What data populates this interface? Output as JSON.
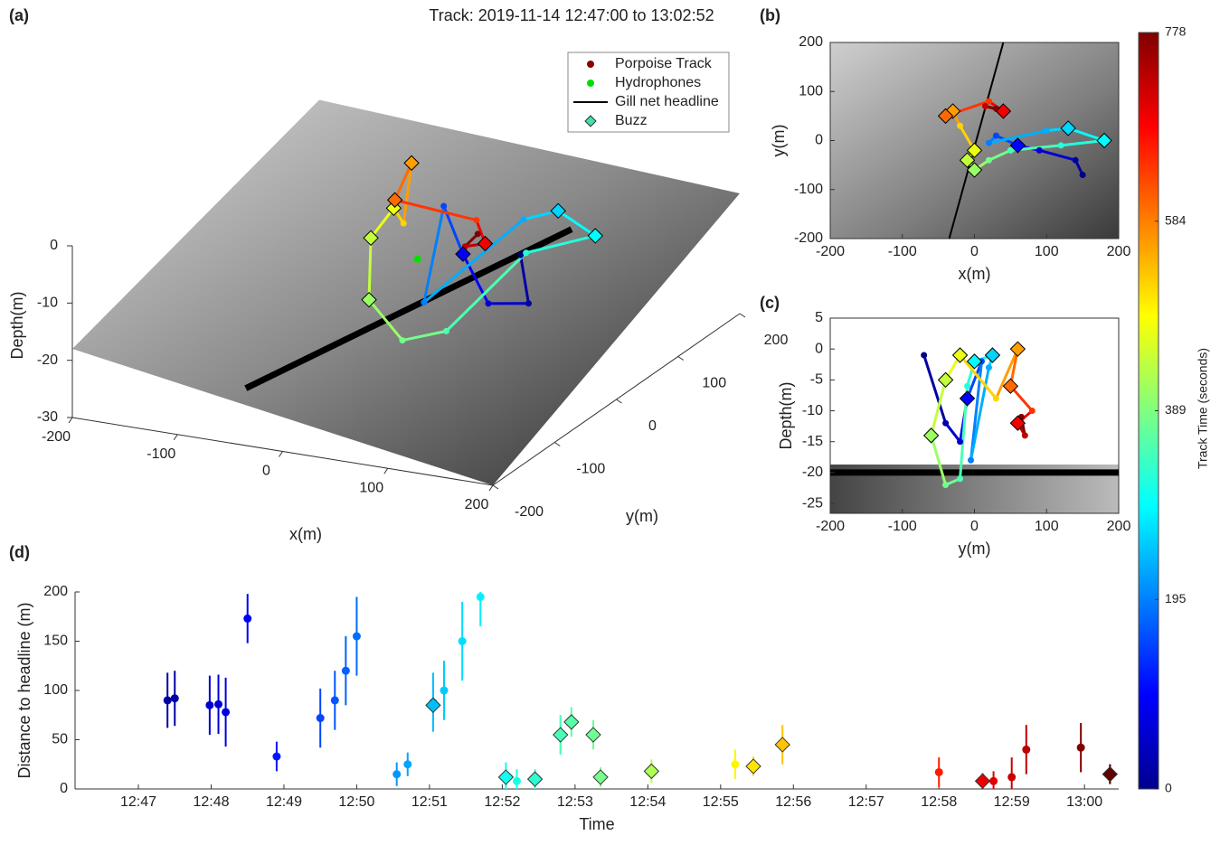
{
  "title": "Track: 2019-11-14 12:47:00 to 13:02:52",
  "chart_data": [
    {
      "type": "surface3d",
      "panel_label": "(a)",
      "x_label": "x(m)",
      "y_label": "y(m)",
      "z_label": "Depth(m)",
      "xlim": [
        -200,
        200
      ],
      "ylim": [
        -200,
        200
      ],
      "zlim": [
        -30,
        0
      ],
      "xticks": [
        -200,
        -100,
        0,
        100,
        200
      ],
      "yticks": [
        -200,
        -100,
        0,
        100,
        200
      ],
      "zticks": [
        -30,
        -20,
        -10,
        0
      ],
      "legend": [
        {
          "name": "Porpoise Track",
          "color": "#8b0000",
          "marker": "circle"
        },
        {
          "name": "Hydrophones",
          "color": "#00e000",
          "marker": "circle"
        },
        {
          "name": "Gill net headline",
          "color": "#000000",
          "marker": "line"
        },
        {
          "name": "Buzz",
          "color": "#40e0b0",
          "marker": "diamond"
        }
      ]
    },
    {
      "type": "map",
      "panel_label": "(b)",
      "x_label": "x(m)",
      "y_label": "y(m)",
      "xlim": [
        -200,
        200
      ],
      "ylim": [
        -200,
        200
      ],
      "xticks": [
        -200,
        -100,
        0,
        100,
        200
      ],
      "yticks": [
        -200,
        -100,
        0,
        100,
        200
      ]
    },
    {
      "type": "section",
      "panel_label": "(c)",
      "x_label": "y(m)",
      "y_label": "Depth(m)",
      "xlim": [
        -200,
        200
      ],
      "ylim": [
        -26.6,
        5
      ],
      "xticks": [
        -200,
        -100,
        0,
        100,
        200
      ],
      "yticks": [
        -25,
        -20,
        -15,
        -10,
        -5,
        0,
        5
      ]
    },
    {
      "type": "scatter",
      "panel_label": "(d)",
      "x_label": "Time",
      "y_label": "Distance to headline (m)",
      "xlim": [
        46.13,
        60.47
      ],
      "xticks": [
        {
          "value": 47,
          "label": "12:47"
        },
        {
          "value": 48,
          "label": "12:48"
        },
        {
          "value": 49,
          "label": "12:49"
        },
        {
          "value": 50,
          "label": "12:50"
        },
        {
          "value": 51,
          "label": "12:51"
        },
        {
          "value": 52,
          "label": "12:52"
        },
        {
          "value": 53,
          "label": "12:53"
        },
        {
          "value": 54,
          "label": "12:54"
        },
        {
          "value": 55,
          "label": "12:55"
        },
        {
          "value": 56,
          "label": "12:56"
        },
        {
          "value": 57,
          "label": "12:57"
        },
        {
          "value": 58,
          "label": "12:58"
        },
        {
          "value": 59,
          "label": "12:59"
        },
        {
          "value": 60,
          "label": "13:00"
        }
      ],
      "ylim": [
        0,
        200
      ],
      "yticks": [
        0,
        50,
        100,
        150,
        200
      ],
      "series": [
        {
          "marker": "circle",
          "x": [
            47.4,
            47.5,
            47.98,
            48.1,
            48.2,
            48.5,
            48.9,
            49.5,
            49.7,
            49.85,
            50.0,
            50.55,
            50.7,
            51.05,
            51.2,
            51.45,
            51.7,
            52.2,
            52.8,
            55.2,
            58.0,
            58.75,
            59.0,
            59.2,
            59.95,
            60.35
          ],
          "values": [
            90,
            92,
            85,
            86,
            78,
            173,
            33,
            72,
            90,
            120,
            155,
            15,
            25,
            88,
            100,
            150,
            195,
            8,
            55,
            25,
            17,
            8,
            12,
            40,
            42,
            15
          ],
          "errors": [
            28,
            28,
            30,
            30,
            35,
            25,
            15,
            30,
            30,
            35,
            40,
            12,
            12,
            30,
            30,
            40,
            30,
            12,
            20,
            15,
            15,
            10,
            20,
            25,
            25,
            10
          ]
        },
        {
          "marker": "diamond",
          "x": [
            51.05,
            52.05,
            52.45,
            52.8,
            52.95,
            53.25,
            53.35,
            54.05,
            55.45,
            55.85,
            58.6,
            60.35
          ],
          "values": [
            85,
            12,
            10,
            55,
            68,
            55,
            12,
            18,
            23,
            45,
            8,
            15
          ],
          "errors": [
            20,
            15,
            10,
            20,
            15,
            15,
            10,
            12,
            10,
            20,
            8,
            10
          ]
        }
      ]
    }
  ],
  "colorbar": {
    "label": "Track Time (seconds)",
    "lim": [
      0,
      778
    ],
    "ticks": [
      0,
      195,
      389,
      584,
      778
    ]
  },
  "track": {
    "time": [
      0,
      30,
      60,
      100,
      150,
      195,
      230,
      260,
      290,
      320,
      350,
      380,
      410,
      440,
      470,
      520,
      560,
      600,
      640,
      690,
      730,
      778
    ],
    "x": [
      150,
      140,
      90,
      60,
      30,
      20,
      100,
      130,
      180,
      120,
      50,
      20,
      0,
      -10,
      0,
      -20,
      -30,
      -40,
      20,
      40,
      15,
      30
    ],
    "y": [
      -70,
      -40,
      -20,
      -10,
      10,
      -5,
      20,
      25,
      0,
      -10,
      -20,
      -40,
      -60,
      -40,
      -20,
      30,
      60,
      50,
      80,
      60,
      70,
      65
    ],
    "depth": [
      -1,
      -12,
      -15,
      -8,
      -2,
      -18,
      -3,
      -1,
      -2,
      -6,
      -21,
      -22,
      -14,
      -5,
      -1,
      -8,
      0,
      -6,
      -10,
      -12,
      -14,
      -11
    ]
  },
  "buzz": {
    "time": [
      100,
      260,
      290,
      410,
      440,
      470,
      560,
      600,
      690
    ],
    "x": [
      60,
      130,
      180,
      0,
      -10,
      0,
      -30,
      -40,
      40
    ],
    "y": [
      -10,
      25,
      0,
      -60,
      -40,
      -20,
      60,
      50,
      60
    ],
    "depth": [
      -8,
      -1,
      -2,
      -14,
      -5,
      -1,
      0,
      -6,
      -12
    ]
  },
  "hydrophones": {
    "x": [
      5
    ],
    "y": [
      10
    ],
    "depth": [
      -12
    ]
  },
  "headline": {
    "x": [
      -35,
      40
    ],
    "y": [
      -200,
      200
    ],
    "depth": [
      -20,
      -20
    ]
  }
}
